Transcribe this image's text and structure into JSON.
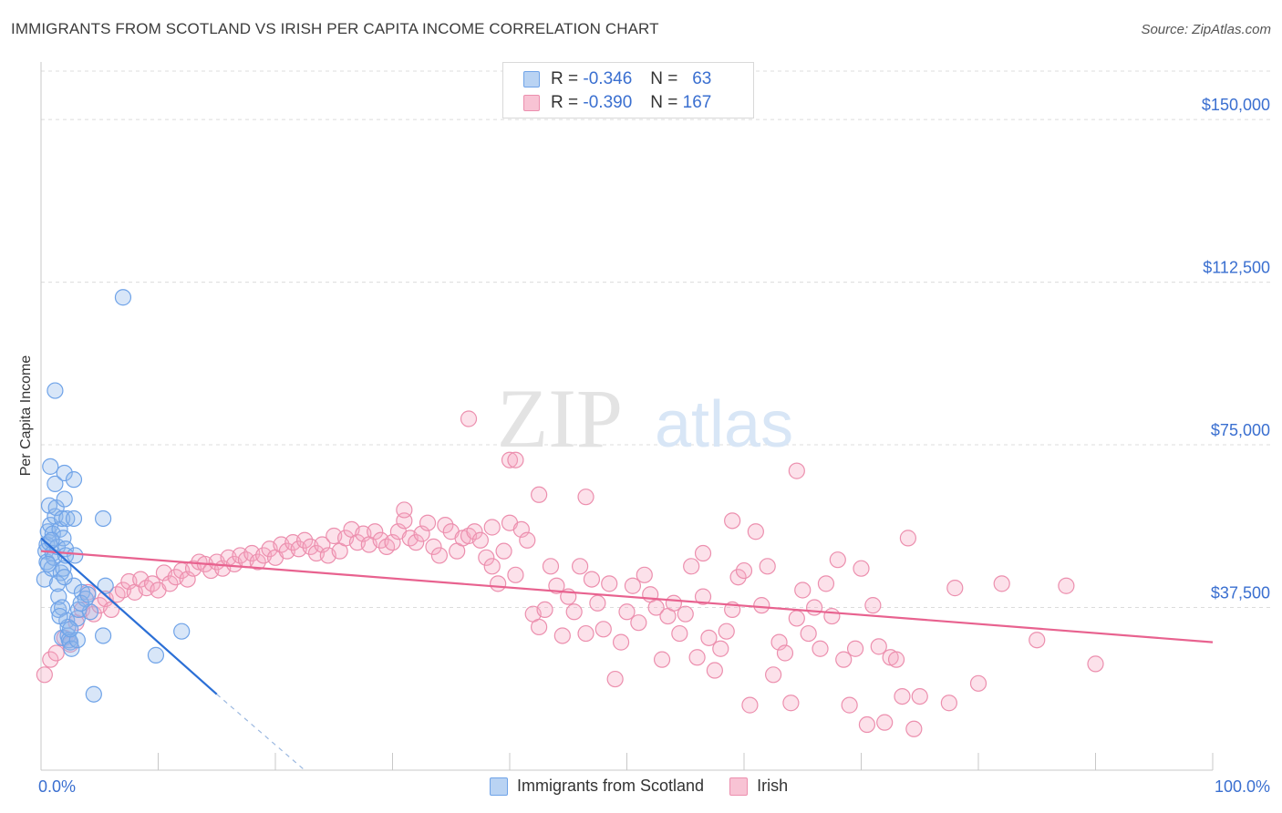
{
  "header": {
    "title": "IMMIGRANTS FROM SCOTLAND VS IRISH PER CAPITA INCOME CORRELATION CHART",
    "source": "Source: ZipAtlas.com"
  },
  "watermark": {
    "zip": "ZIP",
    "atlas": "atlas"
  },
  "legend": {
    "rows": [
      {
        "r_label": "R =",
        "r_value": "-0.346",
        "n_label": "N =",
        "n_value": "63",
        "color": "#6fa3e8",
        "fill": "#b9d3f3"
      },
      {
        "r_label": "R =",
        "r_value": "-0.390",
        "n_label": "N =",
        "n_value": "167",
        "color": "#ec8fae",
        "fill": "#f8c3d4"
      }
    ]
  },
  "bottom_legend": {
    "items": [
      "Immigrants from Scotland",
      "Irish"
    ]
  },
  "colors": {
    "scotland_stroke": "#6fa3e8",
    "scotland_fill": "rgba(142,183,236,0.35)",
    "scotland_line": "#2b6fd6",
    "irish_stroke": "#ec8fae",
    "irish_fill": "rgba(245,170,196,0.35)",
    "irish_line": "#e8628f",
    "tick_label": "#3a6fd0",
    "grid": "#dcdcdc"
  },
  "chart_data": {
    "type": "scatter",
    "title": "IMMIGRANTS FROM SCOTLAND VS IRISH PER CAPITA INCOME CORRELATION CHART",
    "xlabel": "",
    "ylabel": "Per Capita Income",
    "xlim": [
      0,
      100
    ],
    "ylim": [
      0,
      162000
    ],
    "x_tick_labels": [
      "0.0%",
      "100.0%"
    ],
    "y_ticks": [
      37500,
      75000,
      112500,
      150000
    ],
    "y_tick_labels": [
      "$37,500",
      "$75,000",
      "$112,500",
      "$150,000"
    ],
    "grid": true,
    "legend_position": "top-center",
    "series": [
      {
        "name": "Immigrants from Scotland",
        "R": -0.346,
        "N": 63,
        "trend": {
          "x": [
            0,
            15
          ],
          "y": [
            53500,
            17500
          ],
          "dashed_to": {
            "x": 22.5,
            "y": 0
          }
        },
        "points": [
          [
            0.3,
            44000
          ],
          [
            0.4,
            50500
          ],
          [
            0.5,
            52000
          ],
          [
            0.5,
            48000
          ],
          [
            0.6,
            55000
          ],
          [
            0.7,
            52500
          ],
          [
            0.7,
            61000
          ],
          [
            0.8,
            70000
          ],
          [
            0.8,
            56500
          ],
          [
            0.9,
            46500
          ],
          [
            1.0,
            50000
          ],
          [
            1.0,
            54500
          ],
          [
            1.1,
            49000
          ],
          [
            1.2,
            58500
          ],
          [
            1.2,
            66000
          ],
          [
            1.3,
            60500
          ],
          [
            1.4,
            51500
          ],
          [
            1.5,
            40000
          ],
          [
            1.5,
            37000
          ],
          [
            1.6,
            55500
          ],
          [
            1.7,
            45500
          ],
          [
            1.8,
            37500
          ],
          [
            1.8,
            58000
          ],
          [
            1.8,
            30500
          ],
          [
            1.9,
            53500
          ],
          [
            1.9,
            46500
          ],
          [
            2.0,
            62500
          ],
          [
            2.0,
            68500
          ],
          [
            2.1,
            51000
          ],
          [
            2.1,
            49500
          ],
          [
            2.2,
            58000
          ],
          [
            2.2,
            34500
          ],
          [
            2.3,
            31000
          ],
          [
            2.3,
            33000
          ],
          [
            2.4,
            30000
          ],
          [
            2.5,
            29500
          ],
          [
            2.6,
            28000
          ],
          [
            2.8,
            58000
          ],
          [
            2.8,
            67000
          ],
          [
            2.8,
            42500
          ],
          [
            2.9,
            49500
          ],
          [
            3.1,
            35000
          ],
          [
            3.1,
            30000
          ],
          [
            3.2,
            37000
          ],
          [
            3.5,
            41000
          ],
          [
            3.8,
            39500
          ],
          [
            4.2,
            36500
          ],
          [
            4.5,
            17500
          ],
          [
            5.3,
            31000
          ],
          [
            5.3,
            58000
          ],
          [
            5.5,
            42500
          ],
          [
            7.0,
            109000
          ],
          [
            1.2,
            87500
          ],
          [
            9.8,
            26500
          ],
          [
            12.0,
            32000
          ],
          [
            0.6,
            47500
          ],
          [
            1.4,
            43000
          ],
          [
            2.0,
            44500
          ],
          [
            0.9,
            53000
          ],
          [
            1.6,
            35500
          ],
          [
            2.5,
            32500
          ],
          [
            3.4,
            38500
          ],
          [
            4.0,
            40500
          ]
        ]
      },
      {
        "name": "Irish",
        "R": -0.39,
        "N": 167,
        "trend": {
          "x": [
            0,
            100
          ],
          "y": [
            50500,
            29500
          ]
        },
        "points": [
          [
            0.3,
            22000
          ],
          [
            0.8,
            25500
          ],
          [
            1.3,
            27000
          ],
          [
            2.0,
            30500
          ],
          [
            2.5,
            29000
          ],
          [
            3.0,
            34000
          ],
          [
            3.5,
            37000
          ],
          [
            4.0,
            41000
          ],
          [
            4.5,
            36000
          ],
          [
            5.0,
            38000
          ],
          [
            5.5,
            39500
          ],
          [
            6.0,
            37000
          ],
          [
            6.5,
            40500
          ],
          [
            7.0,
            41500
          ],
          [
            7.5,
            43500
          ],
          [
            8.0,
            41000
          ],
          [
            8.5,
            44000
          ],
          [
            9.0,
            42000
          ],
          [
            9.5,
            43000
          ],
          [
            10.0,
            41500
          ],
          [
            10.5,
            45500
          ],
          [
            11.0,
            43000
          ],
          [
            11.5,
            44500
          ],
          [
            12.0,
            46000
          ],
          [
            12.5,
            44000
          ],
          [
            13.0,
            46500
          ],
          [
            13.5,
            48000
          ],
          [
            14.0,
            47500
          ],
          [
            14.5,
            46000
          ],
          [
            15.0,
            48000
          ],
          [
            15.5,
            46500
          ],
          [
            16.0,
            49000
          ],
          [
            16.5,
            47500
          ],
          [
            17.0,
            49500
          ],
          [
            17.5,
            48500
          ],
          [
            18.0,
            50000
          ],
          [
            18.5,
            48000
          ],
          [
            19.0,
            49500
          ],
          [
            19.5,
            51000
          ],
          [
            20.0,
            49000
          ],
          [
            20.5,
            52000
          ],
          [
            21.0,
            50500
          ],
          [
            21.5,
            52500
          ],
          [
            22.0,
            51000
          ],
          [
            22.5,
            53000
          ],
          [
            23.0,
            51500
          ],
          [
            23.5,
            50000
          ],
          [
            24.0,
            52000
          ],
          [
            24.5,
            49500
          ],
          [
            25.0,
            54000
          ],
          [
            25.5,
            50500
          ],
          [
            26.0,
            53500
          ],
          [
            26.5,
            55500
          ],
          [
            27.0,
            52500
          ],
          [
            27.5,
            54500
          ],
          [
            28.0,
            52000
          ],
          [
            28.5,
            55000
          ],
          [
            29.0,
            53000
          ],
          [
            29.5,
            51500
          ],
          [
            30.0,
            52500
          ],
          [
            30.5,
            55000
          ],
          [
            31.0,
            57500
          ],
          [
            31.5,
            53500
          ],
          [
            32.0,
            52500
          ],
          [
            32.5,
            54500
          ],
          [
            33.0,
            57000
          ],
          [
            33.5,
            51500
          ],
          [
            34.0,
            49500
          ],
          [
            34.5,
            56500
          ],
          [
            35.0,
            55000
          ],
          [
            35.5,
            50500
          ],
          [
            36.0,
            53500
          ],
          [
            36.5,
            54000
          ],
          [
            37.0,
            55000
          ],
          [
            37.5,
            53000
          ],
          [
            38.0,
            49000
          ],
          [
            38.5,
            47000
          ],
          [
            39.0,
            43000
          ],
          [
            39.5,
            50500
          ],
          [
            40.0,
            57000
          ],
          [
            40.5,
            45000
          ],
          [
            41.0,
            55500
          ],
          [
            41.5,
            53000
          ],
          [
            42.0,
            36000
          ],
          [
            42.5,
            33000
          ],
          [
            43.0,
            37000
          ],
          [
            43.5,
            47000
          ],
          [
            44.0,
            42500
          ],
          [
            44.5,
            31000
          ],
          [
            45.0,
            40000
          ],
          [
            45.5,
            36500
          ],
          [
            46.0,
            47000
          ],
          [
            46.5,
            31500
          ],
          [
            47.0,
            44000
          ],
          [
            47.5,
            38500
          ],
          [
            48.0,
            32500
          ],
          [
            48.5,
            43000
          ],
          [
            49.0,
            21000
          ],
          [
            49.5,
            29500
          ],
          [
            50.0,
            36500
          ],
          [
            50.5,
            42500
          ],
          [
            51.0,
            34000
          ],
          [
            51.5,
            45000
          ],
          [
            52.0,
            40500
          ],
          [
            52.5,
            37500
          ],
          [
            53.0,
            25500
          ],
          [
            53.5,
            35500
          ],
          [
            54.0,
            38500
          ],
          [
            54.5,
            31500
          ],
          [
            55.0,
            36000
          ],
          [
            55.5,
            47000
          ],
          [
            56.0,
            26000
          ],
          [
            56.5,
            40000
          ],
          [
            57.0,
            30500
          ],
          [
            57.5,
            23000
          ],
          [
            58.0,
            28000
          ],
          [
            58.5,
            32000
          ],
          [
            59.0,
            37000
          ],
          [
            59.5,
            44500
          ],
          [
            60.0,
            46000
          ],
          [
            60.5,
            15000
          ],
          [
            61.0,
            55000
          ],
          [
            61.5,
            38000
          ],
          [
            62.0,
            47000
          ],
          [
            62.5,
            22000
          ],
          [
            63.0,
            29500
          ],
          [
            63.5,
            27000
          ],
          [
            64.0,
            15500
          ],
          [
            64.5,
            35000
          ],
          [
            65.0,
            41500
          ],
          [
            65.5,
            31500
          ],
          [
            66.0,
            37500
          ],
          [
            66.5,
            28000
          ],
          [
            67.0,
            43000
          ],
          [
            67.5,
            35500
          ],
          [
            68.0,
            48500
          ],
          [
            68.5,
            25500
          ],
          [
            69.0,
            15000
          ],
          [
            69.5,
            28000
          ],
          [
            70.0,
            46500
          ],
          [
            70.5,
            10500
          ],
          [
            71.0,
            38000
          ],
          [
            71.5,
            28500
          ],
          [
            72.0,
            11000
          ],
          [
            72.5,
            26000
          ],
          [
            73.0,
            25500
          ],
          [
            73.5,
            17000
          ],
          [
            74.0,
            53500
          ],
          [
            74.5,
            9500
          ],
          [
            75.0,
            17000
          ],
          [
            77.5,
            15500
          ],
          [
            80.0,
            20000
          ],
          [
            82.0,
            43000
          ],
          [
            87.5,
            42500
          ],
          [
            90.0,
            24500
          ],
          [
            78.0,
            42000
          ],
          [
            36.5,
            81000
          ],
          [
            40.0,
            71500
          ],
          [
            64.5,
            69000
          ],
          [
            42.5,
            63500
          ],
          [
            31.0,
            60000
          ],
          [
            85.0,
            30000
          ],
          [
            40.5,
            71500
          ],
          [
            38.5,
            56000
          ],
          [
            46.5,
            63000
          ],
          [
            56.5,
            50000
          ],
          [
            59.0,
            57500
          ]
        ]
      }
    ]
  }
}
